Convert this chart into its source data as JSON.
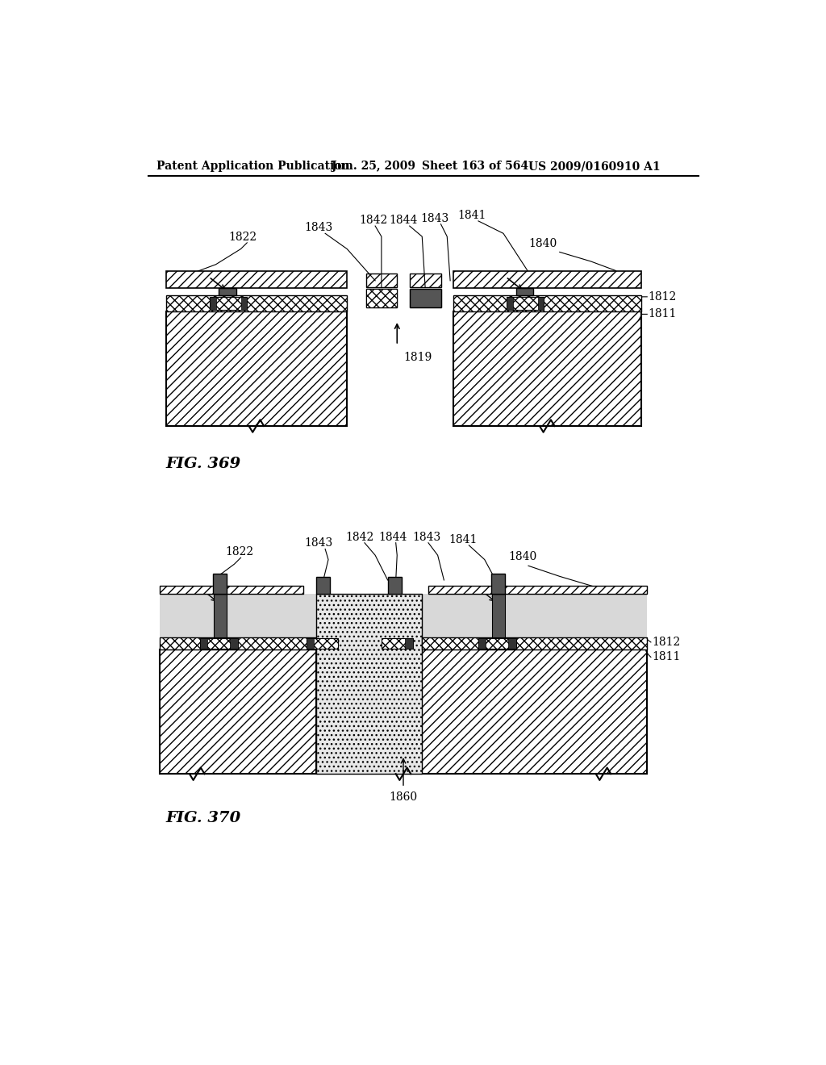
{
  "bg_color": "#ffffff",
  "header_text": "Patent Application Publication",
  "header_date": "Jun. 25, 2009",
  "header_sheet": "Sheet 163 of 564",
  "header_patent": "US 2009/0160910 A1",
  "fig369_label": "FIG. 369",
  "fig370_label": "FIG. 370",
  "label_1822": "1822",
  "label_1843a": "1843",
  "label_1842": "1842",
  "label_1844": "1844",
  "label_1843b": "1843",
  "label_1841": "1841",
  "label_1840": "1840",
  "label_1812": "1812",
  "label_1811": "1811",
  "label_1819": "1819",
  "label_1860": "1860"
}
